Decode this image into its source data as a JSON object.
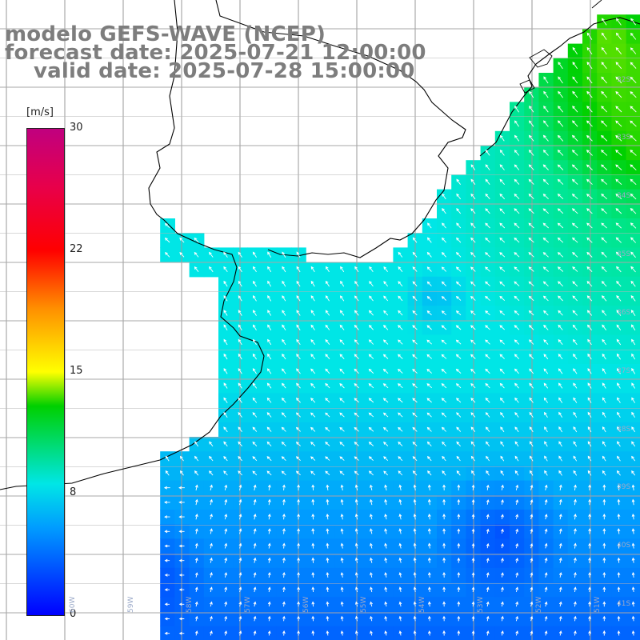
{
  "title": {
    "line1": "modelo GEFS-WAVE (NCEP)",
    "line2": "forecast date: 2025-07-21 12:00:00",
    "line3": "valid date: 2025-07-28 15:00:00"
  },
  "colorbar": {
    "units": "[m/s]",
    "ticks": [
      "30",
      "22",
      "15",
      "8",
      "0"
    ],
    "range": [
      0,
      30
    ],
    "colors": [
      "#0000ff",
      "#009cff",
      "#00e6e6",
      "#00d000",
      "#ffff00",
      "#ff9000",
      "#ff0000",
      "#c0007f"
    ]
  },
  "map": {
    "variable": "wind speed with direction arrows",
    "land_color": "#ffffff",
    "coast_color": "#000000",
    "grid_color": "#999999",
    "lat_labels": [
      "32S",
      "33S",
      "34S",
      "35S",
      "36S",
      "37S",
      "38S",
      "39S",
      "40S",
      "41S"
    ],
    "lon_labels": [
      "60W",
      "59W",
      "58W",
      "57W",
      "56W",
      "55W",
      "54W",
      "53W",
      "52W",
      "51W"
    ]
  }
}
